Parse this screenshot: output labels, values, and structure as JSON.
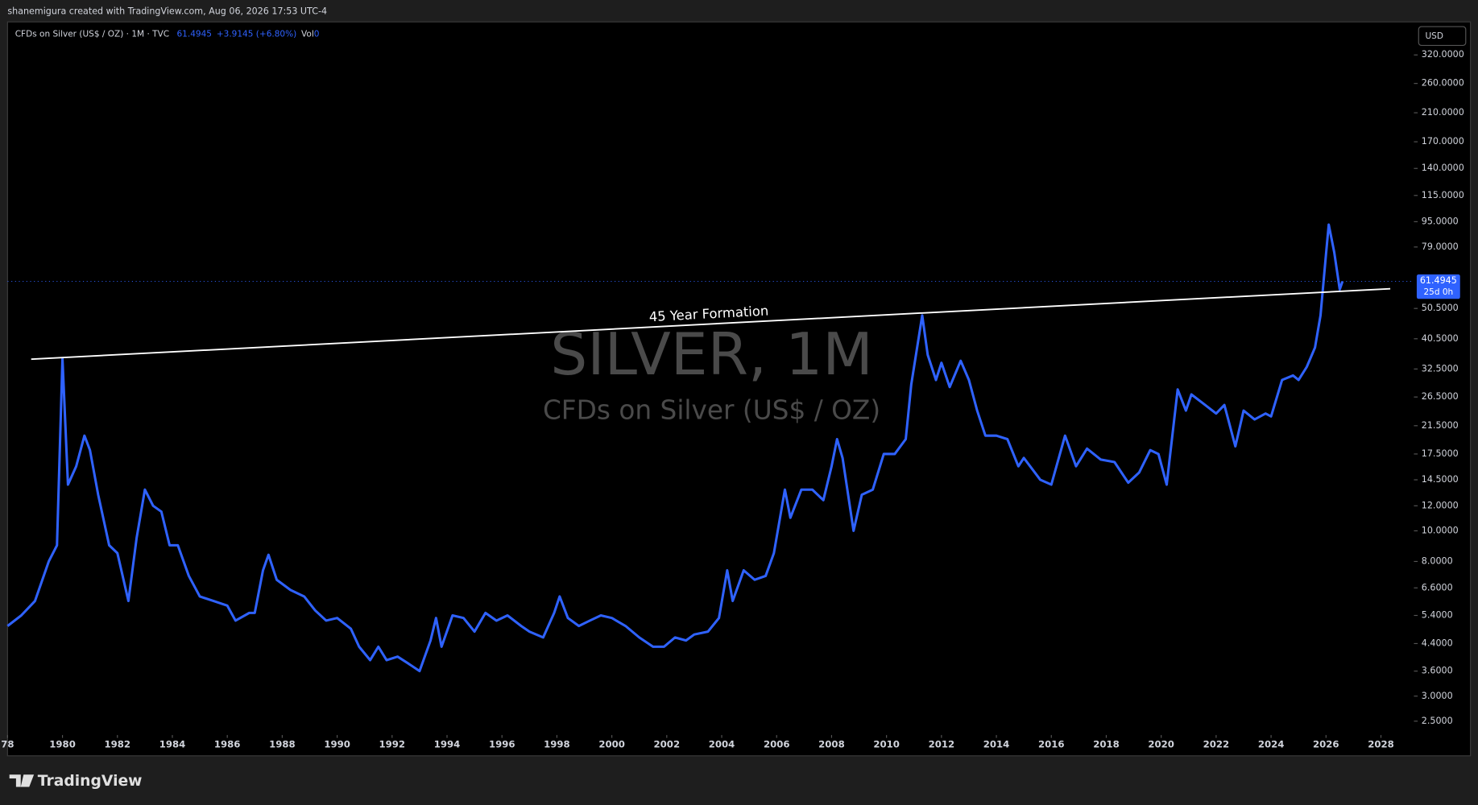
{
  "header": {
    "credit": "shanemigura created with TradingView.com, Aug 06, 2026 17:53 UTC-4"
  },
  "legend": {
    "symbol": "CFDs on Silver (US$ / OZ) · 1M · TVC",
    "change": "+3.9145 (+6.80%)",
    "vol_label": "Vol",
    "vol_value": "0"
  },
  "watermark": {
    "title": "SILVER, 1M",
    "subtitle": "CFDs on Silver (US$ / OZ)"
  },
  "currency": "USD",
  "countdown": "25d 0h",
  "brand": "TradingView",
  "chart_data": {
    "type": "line",
    "log_scale": true,
    "last_price_line": true,
    "x": [
      1978.0,
      1978.5,
      1979.0,
      1979.5,
      1979.8,
      1980.0,
      1980.2,
      1980.5,
      1980.8,
      1981.0,
      1981.3,
      1981.7,
      1982.0,
      1982.4,
      1982.7,
      1983.0,
      1983.3,
      1983.6,
      1983.9,
      1984.2,
      1984.6,
      1985.0,
      1985.5,
      1986.0,
      1986.3,
      1986.8,
      1987.0,
      1987.3,
      1987.5,
      1987.8,
      1988.3,
      1988.8,
      1989.2,
      1989.6,
      1990.0,
      1990.5,
      1990.8,
      1991.2,
      1991.5,
      1991.8,
      1992.2,
      1992.6,
      1993.0,
      1993.4,
      1993.6,
      1993.8,
      1994.2,
      1994.6,
      1995.0,
      1995.4,
      1995.8,
      1996.2,
      1996.7,
      1997.0,
      1997.5,
      1997.9,
      1998.1,
      1998.4,
      1998.8,
      1999.2,
      1999.6,
      2000.0,
      2000.5,
      2001.0,
      2001.5,
      2001.9,
      2002.3,
      2002.7,
      2003.0,
      2003.5,
      2003.9,
      2004.2,
      2004.4,
      2004.8,
      2005.2,
      2005.6,
      2005.9,
      2006.3,
      2006.5,
      2006.9,
      2007.3,
      2007.7,
      2008.0,
      2008.2,
      2008.4,
      2008.8,
      2009.1,
      2009.5,
      2009.9,
      2010.3,
      2010.7,
      2010.9,
      2011.3,
      2011.5,
      2011.8,
      2012.0,
      2012.3,
      2012.7,
      2013.0,
      2013.3,
      2013.6,
      2014.0,
      2014.4,
      2014.8,
      2015.0,
      2015.6,
      2016.0,
      2016.5,
      2016.9,
      2017.3,
      2017.8,
      2018.3,
      2018.8,
      2019.2,
      2019.6,
      2019.9,
      2020.2,
      2020.6,
      2020.9,
      2021.1,
      2021.6,
      2022.0,
      2022.3,
      2022.7,
      2023.0,
      2023.4,
      2023.8,
      2024.0,
      2024.4,
      2024.8,
      2025.0,
      2025.3,
      2025.6,
      2025.8,
      2026.0,
      2026.1,
      2026.3,
      2026.5,
      2026.6
    ],
    "series": [
      {
        "color": "#2f62ff",
        "values": [
          5.0,
          5.4,
          6.0,
          8.0,
          9.0,
          35.0,
          14.0,
          16.0,
          20.0,
          18.0,
          13.0,
          9.0,
          8.5,
          6.0,
          9.5,
          13.5,
          12.0,
          11.5,
          9.0,
          9.0,
          7.2,
          6.2,
          6.0,
          5.8,
          5.2,
          5.5,
          5.5,
          7.5,
          8.4,
          7.0,
          6.5,
          6.2,
          5.6,
          5.2,
          5.3,
          4.9,
          4.3,
          3.9,
          4.3,
          3.9,
          4.0,
          3.8,
          3.6,
          4.5,
          5.3,
          4.3,
          5.4,
          5.3,
          4.8,
          5.5,
          5.2,
          5.4,
          5.0,
          4.8,
          4.6,
          5.5,
          6.2,
          5.3,
          5.0,
          5.2,
          5.4,
          5.3,
          5.0,
          4.6,
          4.3,
          4.3,
          4.6,
          4.5,
          4.7,
          4.8,
          5.3,
          7.5,
          6.0,
          7.5,
          7.0,
          7.2,
          8.5,
          13.5,
          11.0,
          13.5,
          13.5,
          12.5,
          16.0,
          19.5,
          17.0,
          10.0,
          13.0,
          13.5,
          17.5,
          17.5,
          19.5,
          29.0,
          48.0,
          36.0,
          30.0,
          34.0,
          28.5,
          34.5,
          30.0,
          24.0,
          20.0,
          20.0,
          19.5,
          16.0,
          17.0,
          14.5,
          14.0,
          20.0,
          16.0,
          18.2,
          16.8,
          16.5,
          14.2,
          15.3,
          18.0,
          17.5,
          14.0,
          28.0,
          24.0,
          27.0,
          25.0,
          23.5,
          25.0,
          18.5,
          24.0,
          22.5,
          23.5,
          23.0,
          30.0,
          31.0,
          30.0,
          33.0,
          38.0,
          48.0,
          75.0,
          93.0,
          76.0,
          58.0,
          61.4945
        ]
      }
    ],
    "xlim": [
      1978,
      2029.2
    ],
    "ylim": [
      1.97,
      407
    ],
    "xticks": [
      {
        "value": 1978,
        "label": "78"
      },
      1980,
      1982,
      1984,
      1986,
      1988,
      1990,
      1992,
      1994,
      1996,
      1998,
      2000,
      2002,
      2004,
      2006,
      2008,
      2010,
      2012,
      2014,
      2016,
      2018,
      2020,
      2022,
      2024,
      2026,
      2028
    ],
    "yticks": [
      {
        "value": 320,
        "label": "320.0000"
      },
      {
        "value": 260,
        "label": "260.0000"
      },
      {
        "value": 210,
        "label": "210.0000"
      },
      {
        "value": 170,
        "label": "170.0000"
      },
      {
        "value": 140,
        "label": "140.0000"
      },
      {
        "value": 115,
        "label": "115.0000"
      },
      {
        "value": 95,
        "label": "95.0000"
      },
      {
        "value": 79,
        "label": "79.0000"
      },
      {
        "value": 50.5,
        "label": "50.5000"
      },
      {
        "value": 40.5,
        "label": "40.5000"
      },
      {
        "value": 32.5,
        "label": "32.5000"
      },
      {
        "value": 26.5,
        "label": "26.5000"
      },
      {
        "value": 21.5,
        "label": "21.5000"
      },
      {
        "value": 17.5,
        "label": "17.5000"
      },
      {
        "value": 14.5,
        "label": "14.5000"
      },
      {
        "value": 12,
        "label": "12.0000"
      },
      {
        "value": 10,
        "label": "10.0000"
      },
      {
        "value": 8,
        "label": "8.0000"
      },
      {
        "value": 6.6,
        "label": "6.6000"
      },
      {
        "value": 5.4,
        "label": "5.4000"
      },
      {
        "value": 4.4,
        "label": "4.4000"
      },
      {
        "value": 3.6,
        "label": "3.6000"
      },
      {
        "value": 3,
        "label": "3.0000"
      },
      {
        "value": 2.5,
        "label": "2.5000"
      }
    ],
    "annotation": {
      "text": "45 Year Formation",
      "color": "#ffffff",
      "x": [
        1978.86,
        2028.34
      ],
      "values": [
        34.9,
        58.3
      ]
    }
  }
}
